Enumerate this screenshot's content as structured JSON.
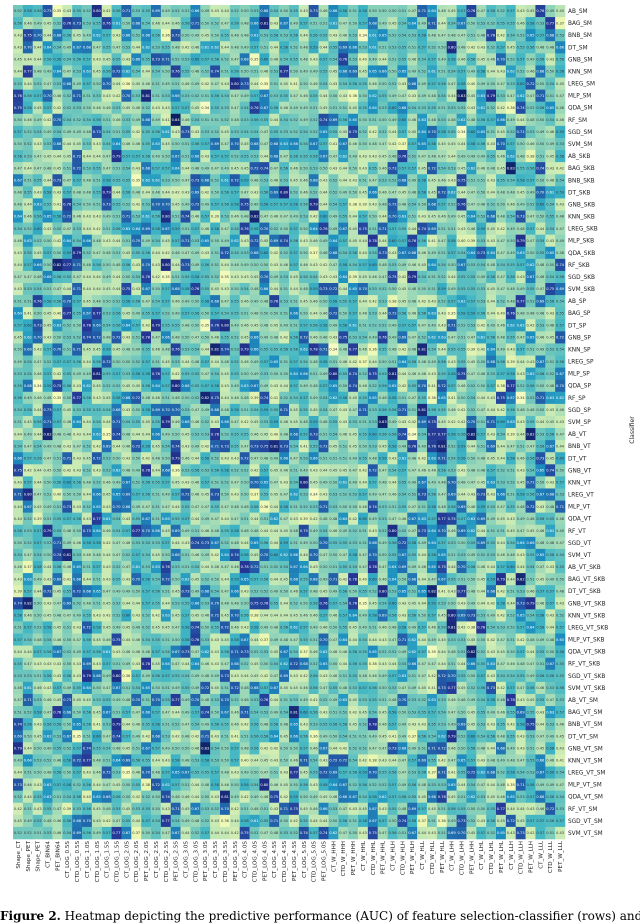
{
  "chart_data": {
    "type": "heatmap",
    "ylabel": "Classifier",
    "rows": [
      "AB_SM",
      "BAG_SM",
      "BNB_SM",
      "DT_SM",
      "GNB_SM",
      "KNN_SM",
      "LREG_SM",
      "MLP_SM",
      "QDA_SM",
      "RF_SM",
      "SGD_SM",
      "SVM_SM",
      "AB_SKB",
      "BAG_SKB",
      "BNB_SKB",
      "DT_SKB",
      "GNB_SKB",
      "KNN_SKB",
      "LREG_SKB",
      "MLP_SKB",
      "QDA_SKB",
      "RF_SKB",
      "SGD_SKB",
      "SVM_SKB",
      "AB_SP",
      "BAG_SP",
      "DT_SP",
      "GNB_SP",
      "KNN_SP",
      "LREG_SP",
      "MLP_SP",
      "QDA_SP",
      "RF_SP",
      "SGD_SP",
      "SVM_SP",
      "AB_VT",
      "BNB_VT",
      "DT_VT",
      "GNB_VT",
      "KNN_VT",
      "LREG_VT",
      "MLP_VT",
      "QDA_VT",
      "RF_VT",
      "SGD_VT",
      "SVM_VT",
      "AB_VT_SKB",
      "BAG_VT_SKB",
      "DT_VT_SKB",
      "GNB_VT_SKB",
      "KNN_VT_SKB",
      "LREG_VT_SKB",
      "MLP_VT_SKB",
      "QDA_VT_SKB",
      "RF_VT_SKB",
      "SGD_VT_SKB",
      "SVM_VT_SKB",
      "AB_VT_SM",
      "BAG_VT_SM",
      "BNB_VT_SM",
      "DT_VT_SM",
      "GNB_VT_SM",
      "KNN_VT_SM",
      "LREG_VT_SM",
      "MLP_VT_SM",
      "QDA_VT_SM",
      "RF_VT_SM",
      "SGD_VT_SM",
      "SVM_VT_SM"
    ],
    "columns": [
      "Shape_CT",
      "Shape_PET",
      "Shape_PET",
      "CT_BIN64",
      "PET_BIN64",
      "CT_LOG_0.5S",
      "CTD_LOG_0.5S",
      "CT_LOG_1.0S",
      "CTD_LOG_1.0S",
      "CT_LOG_1.5S",
      "CTD_LOG_1.5S",
      "CT_LOG_2.0S",
      "CTD_LOG_2.0S",
      "PET_LOG_2.0S",
      "CT_LOG_2.5S",
      "CTD_LOG_2.5S",
      "PET_LOG_2.5S",
      "CT_LOG_3.0S",
      "CTD_LOG_3.0S",
      "PET_LOG_3.0S",
      "CT_LOG_3.5S",
      "CTD_LOG_3.5S",
      "PET_LOG_3.5S",
      "CT_LOG_4.0S",
      "CTD_LOG_4.0S",
      "PET_LOG_4.0S",
      "CT_LOG_4.5S",
      "CTD_LOG_4.5S",
      "PET_LOG_4.5S",
      "CT_LOG_5.0S",
      "CTD_LOG_5.0S",
      "PET_LOG_5.0S",
      "CT_W_HHH",
      "CTD_W_HHH",
      "PET_W_HHH",
      "CT_W_HHL",
      "CTD_W_HHL",
      "PET_W_HHL",
      "CT_W_HLH",
      "CTD_W_HLH",
      "PET_W_HLH",
      "CT_W_HLL",
      "CTD_W_HLL",
      "PET_W_HLL",
      "CT_W_LHH",
      "CTD_W_LHH",
      "PET_W_LHH",
      "CT_W_LHL",
      "CTD_W_LHL",
      "PET_W_LHL",
      "CT_W_LLH",
      "CTD_W_LLH",
      "PET_W_LLH",
      "CT_W_LLL",
      "CTD_W_LLL",
      "PET_W_LLL"
    ],
    "value_range": [
      0.3,
      0.85
    ],
    "colormap": "YlGnBu",
    "values_note_seed": 7
  },
  "caption": {
    "label": "Figure 2.",
    "text": " Heatmap depicting the predictive performance (AUC) of feature selection-classifier (rows) and image sets (columns) in"
  },
  "colors": {
    "low": "#ffffd9",
    "mid": "#41b6c4",
    "high": "#081d58"
  }
}
